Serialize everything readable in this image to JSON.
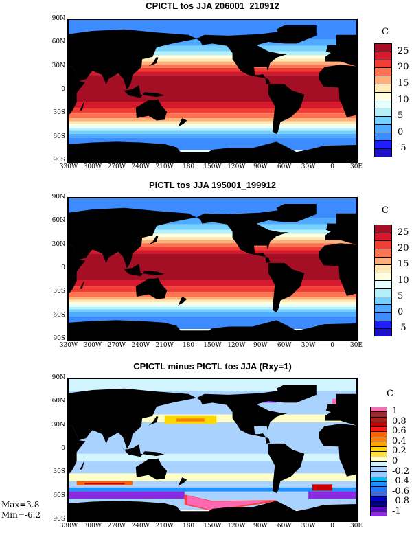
{
  "panels": [
    {
      "title": "CPICTL tos JJA 206001_210912",
      "unit": "C",
      "type": "sst"
    },
    {
      "title": "PICTL tos JJA 195001_199912",
      "unit": "C",
      "type": "sst2"
    },
    {
      "title": "CPICTL minus PICTL tos JJA (Rxy=1)",
      "unit": "C",
      "type": "diff"
    }
  ],
  "lat_labels": [
    "90N",
    "60N",
    "30N",
    "0",
    "30S",
    "60S",
    "90S"
  ],
  "lon_labels": [
    "330W",
    "300W",
    "270W",
    "240W",
    "210W",
    "180",
    "150W",
    "120W",
    "90W",
    "60W",
    "30W",
    "0",
    "30E"
  ],
  "sst_colorbar": {
    "colors": [
      "#a50f26",
      "#d7192d",
      "#f03e34",
      "#fb7350",
      "#fdb07a",
      "#fee8b6",
      "#ffffe0",
      "#e6ffff",
      "#b4f0fa",
      "#78d2ff",
      "#50aaff",
      "#3c8cff",
      "#1e1eff",
      "#1e10c8"
    ],
    "labels": [
      "25",
      "20",
      "15",
      "10",
      "5",
      "0",
      "-5"
    ]
  },
  "diff_colorbar": {
    "colors": [
      "#ff69b4",
      "#a0282d",
      "#a52020",
      "#c80000",
      "#ff1a1a",
      "#ff6000",
      "#ff8000",
      "#ffa500",
      "#ffd700",
      "#ffe040",
      "#ffffc8",
      "#d2f5ff",
      "#aad2ff",
      "#96c8ff",
      "#00bfff",
      "#1e90ff",
      "#1e78ff",
      "#4169e1",
      "#0000cd",
      "#00008b",
      "#5a0ac8",
      "#8a2be2"
    ],
    "labels": [
      "1",
      "0.8",
      "0.6",
      "0.4",
      "0.2",
      "0",
      "-0.2",
      "-0.4",
      "-0.6",
      "-0.8",
      "-1"
    ]
  },
  "stats": {
    "max": "Max=3.8",
    "min": "Min=-6.2"
  },
  "chart_data": {
    "type": "heatmap",
    "xlabel": "longitude",
    "ylabel": "latitude",
    "xlim": [
      "330W",
      "30E"
    ],
    "ylim": [
      "90S",
      "90N"
    ],
    "variable": "tos",
    "season": "JJA"
  }
}
